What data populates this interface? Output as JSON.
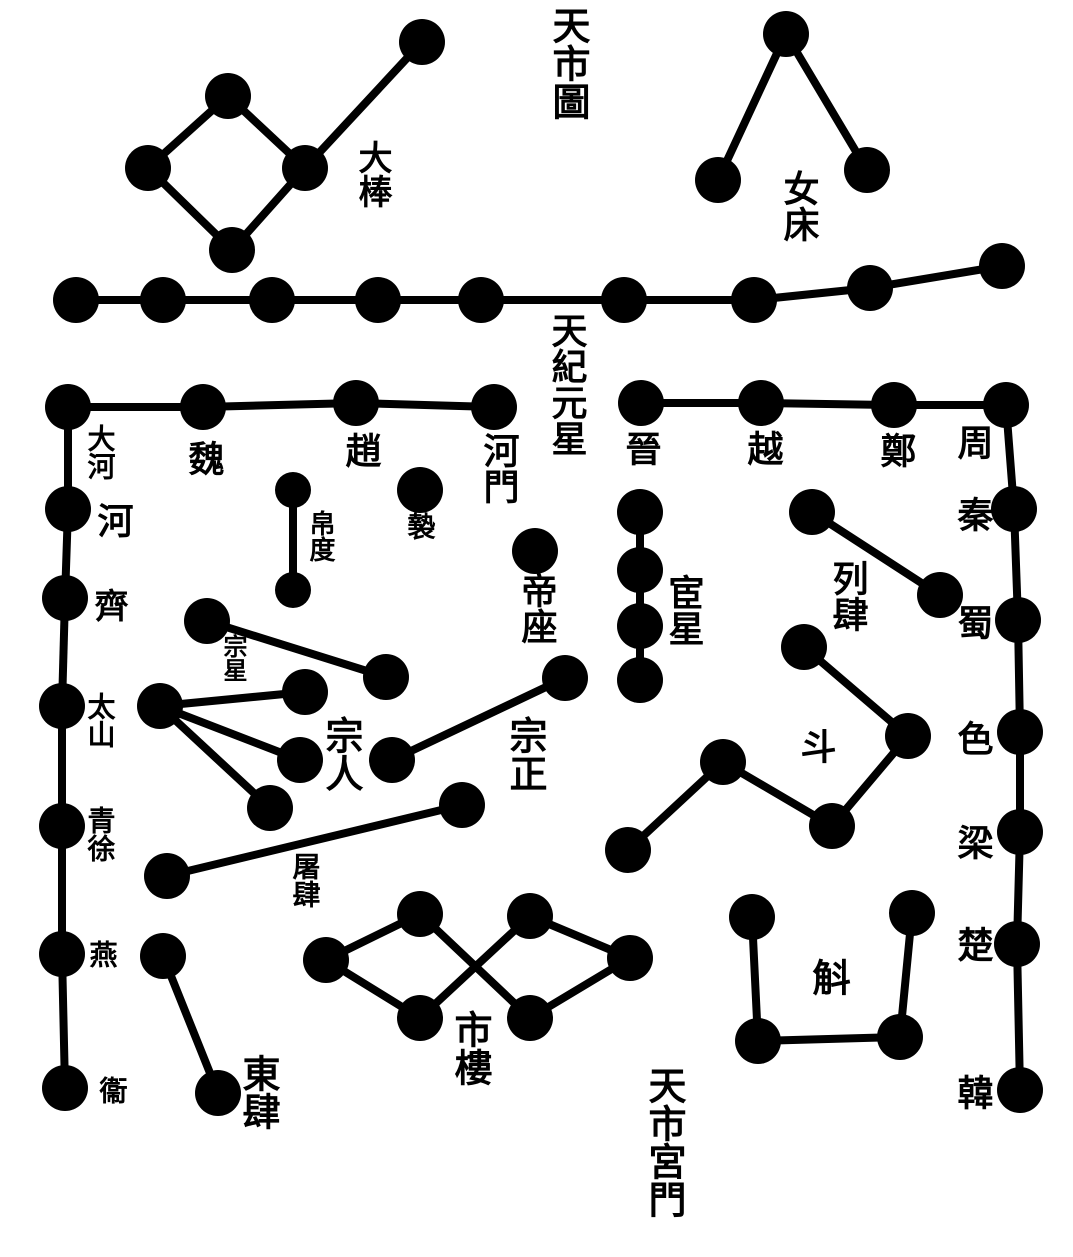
{
  "diagram": {
    "title": "天市圖",
    "colors": {
      "ink": "#000000",
      "paper": "#ffffff"
    },
    "labels": [
      {
        "id": "title",
        "text": "天市圖"
      },
      {
        "id": "dazhu",
        "text": "大棒"
      },
      {
        "id": "nvchuang",
        "text": "女床"
      },
      {
        "id": "tianji",
        "text": "天紀元星"
      },
      {
        "id": "dahe",
        "text": "大河"
      },
      {
        "id": "wei",
        "text": "魏"
      },
      {
        "id": "zhao",
        "text": "趙"
      },
      {
        "id": "hemen",
        "text": "河門"
      },
      {
        "id": "jin",
        "text": "晉"
      },
      {
        "id": "yue",
        "text": "越"
      },
      {
        "id": "zheng",
        "text": "鄭"
      },
      {
        "id": "zhou",
        "text": "周"
      },
      {
        "id": "hejian",
        "text": "河"
      },
      {
        "id": "qi",
        "text": "齊"
      },
      {
        "id": "taishan",
        "text": "太山"
      },
      {
        "id": "qingxu",
        "text": "青徐"
      },
      {
        "id": "yan",
        "text": "燕"
      },
      {
        "id": "weiwall",
        "text": "衞"
      },
      {
        "id": "qin",
        "text": "秦"
      },
      {
        "id": "shu",
        "text": "蜀"
      },
      {
        "id": "ba",
        "text": "色"
      },
      {
        "id": "liang",
        "text": "梁"
      },
      {
        "id": "chu",
        "text": "楚"
      },
      {
        "id": "han",
        "text": "韓"
      },
      {
        "id": "bodu",
        "text": "帛度"
      },
      {
        "id": "ji",
        "text": "褺"
      },
      {
        "id": "dizuo",
        "text": "帝座"
      },
      {
        "id": "huanzhe",
        "text": "宦星"
      },
      {
        "id": "liesi",
        "text": "列肆"
      },
      {
        "id": "zongxing",
        "text": "宗星"
      },
      {
        "id": "zongren",
        "text": "宗人"
      },
      {
        "id": "zongzheng",
        "text": "宗正"
      },
      {
        "id": "dou",
        "text": "斗"
      },
      {
        "id": "tusi",
        "text": "屠肆"
      },
      {
        "id": "shilou",
        "text": "市樓"
      },
      {
        "id": "dongsi",
        "text": "東肆"
      },
      {
        "id": "hu",
        "text": "斛"
      },
      {
        "id": "tianshi_gongmen",
        "text": "天市宮門"
      }
    ]
  }
}
